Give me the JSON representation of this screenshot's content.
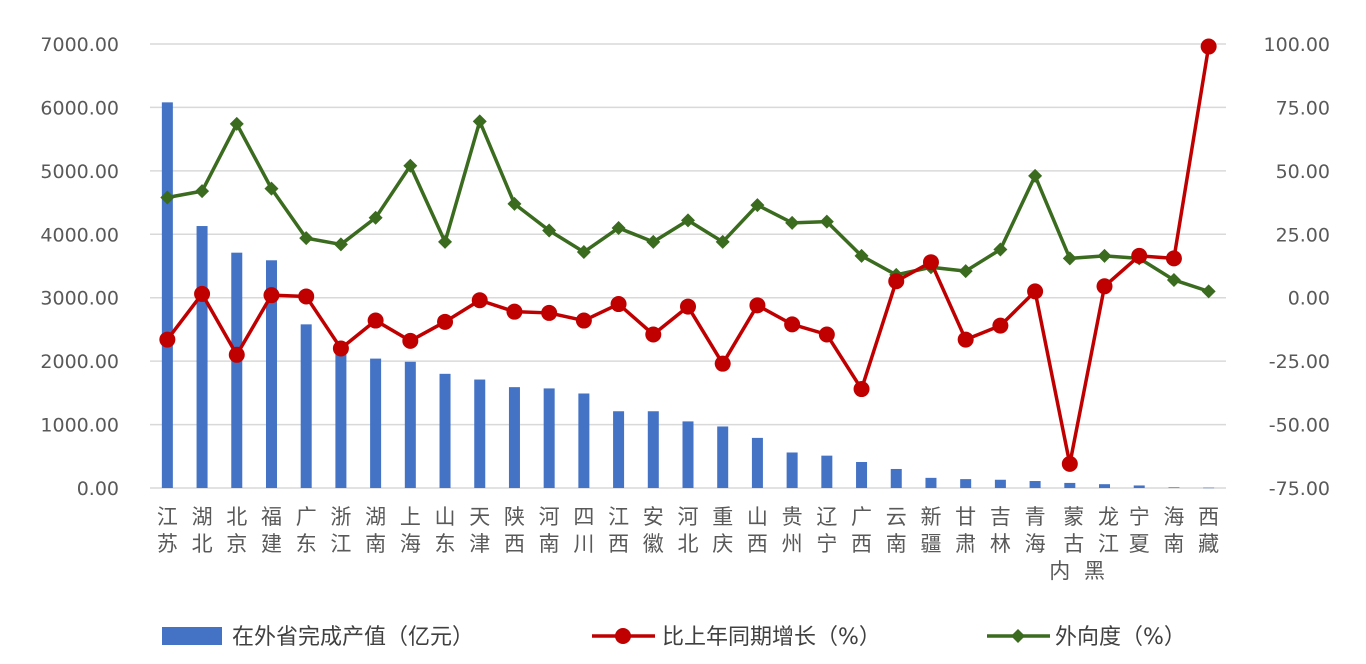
{
  "chart_data": {
    "type": "bar",
    "categories": [
      "江苏",
      "湖北",
      "北京",
      "福建",
      "广东",
      "浙江",
      "湖南",
      "上海",
      "山东",
      "天津",
      "陕西",
      "河南",
      "四川",
      "江西",
      "安徽",
      "河北",
      "重庆",
      "山西",
      "贵州",
      "辽宁",
      "广西",
      "云南",
      "新疆",
      "甘肃",
      "吉林",
      "青海",
      "内蒙古",
      "黑龙江",
      "宁夏",
      "海南",
      "西藏"
    ],
    "y_ticks": [
      "7000.00",
      "6000.00",
      "5000.00",
      "4000.00",
      "3000.00",
      "2000.00",
      "1000.00",
      "0.00"
    ],
    "y2_ticks": [
      "100.00",
      "75.00",
      "50.00",
      "25.00",
      "0.00",
      "-25.00",
      "-50.00",
      "-75.00"
    ],
    "ylim": [
      0,
      7000
    ],
    "y2lim": [
      -75,
      100
    ],
    "grid": true,
    "legend_position": "bottom",
    "series": [
      {
        "name": "在外省完成产值（亿元）",
        "type": "bar",
        "axis": "left",
        "color": "#4472c4",
        "values": [
          6080,
          4130,
          3710,
          3590,
          2580,
          2170,
          2040,
          1990,
          1800,
          1710,
          1590,
          1570,
          1490,
          1210,
          1210,
          1050,
          970,
          790,
          560,
          510,
          410,
          300,
          160,
          140,
          130,
          110,
          80,
          60,
          40,
          10,
          5
        ]
      },
      {
        "name": "比上年同期增长（%）",
        "type": "line",
        "axis": "right",
        "color": "#c00000",
        "marker": "circle",
        "values": [
          -16.5,
          1.5,
          -22.5,
          1.0,
          0.5,
          -20.0,
          -9.0,
          -17.0,
          -9.5,
          -1.0,
          -5.5,
          -6.0,
          -9.0,
          -2.5,
          -14.5,
          -3.5,
          -26.0,
          -3.0,
          -10.5,
          -14.5,
          -36.0,
          6.5,
          14.0,
          -16.5,
          -11.0,
          2.5,
          -65.5,
          4.5,
          16.5,
          15.5,
          99.0
        ]
      },
      {
        "name": "外向度（%）",
        "type": "line",
        "axis": "right",
        "color": "#3a6b1f",
        "marker": "diamond",
        "values": [
          39.5,
          42.0,
          68.5,
          43.0,
          23.5,
          21.0,
          31.5,
          52.0,
          22.0,
          69.5,
          37.0,
          26.5,
          18.0,
          27.5,
          22.0,
          30.5,
          22.0,
          36.5,
          29.5,
          30.0,
          16.5,
          9.0,
          12.0,
          10.5,
          19.0,
          48.0,
          15.5,
          16.5,
          15.5,
          7.0,
          2.5
        ]
      }
    ]
  }
}
